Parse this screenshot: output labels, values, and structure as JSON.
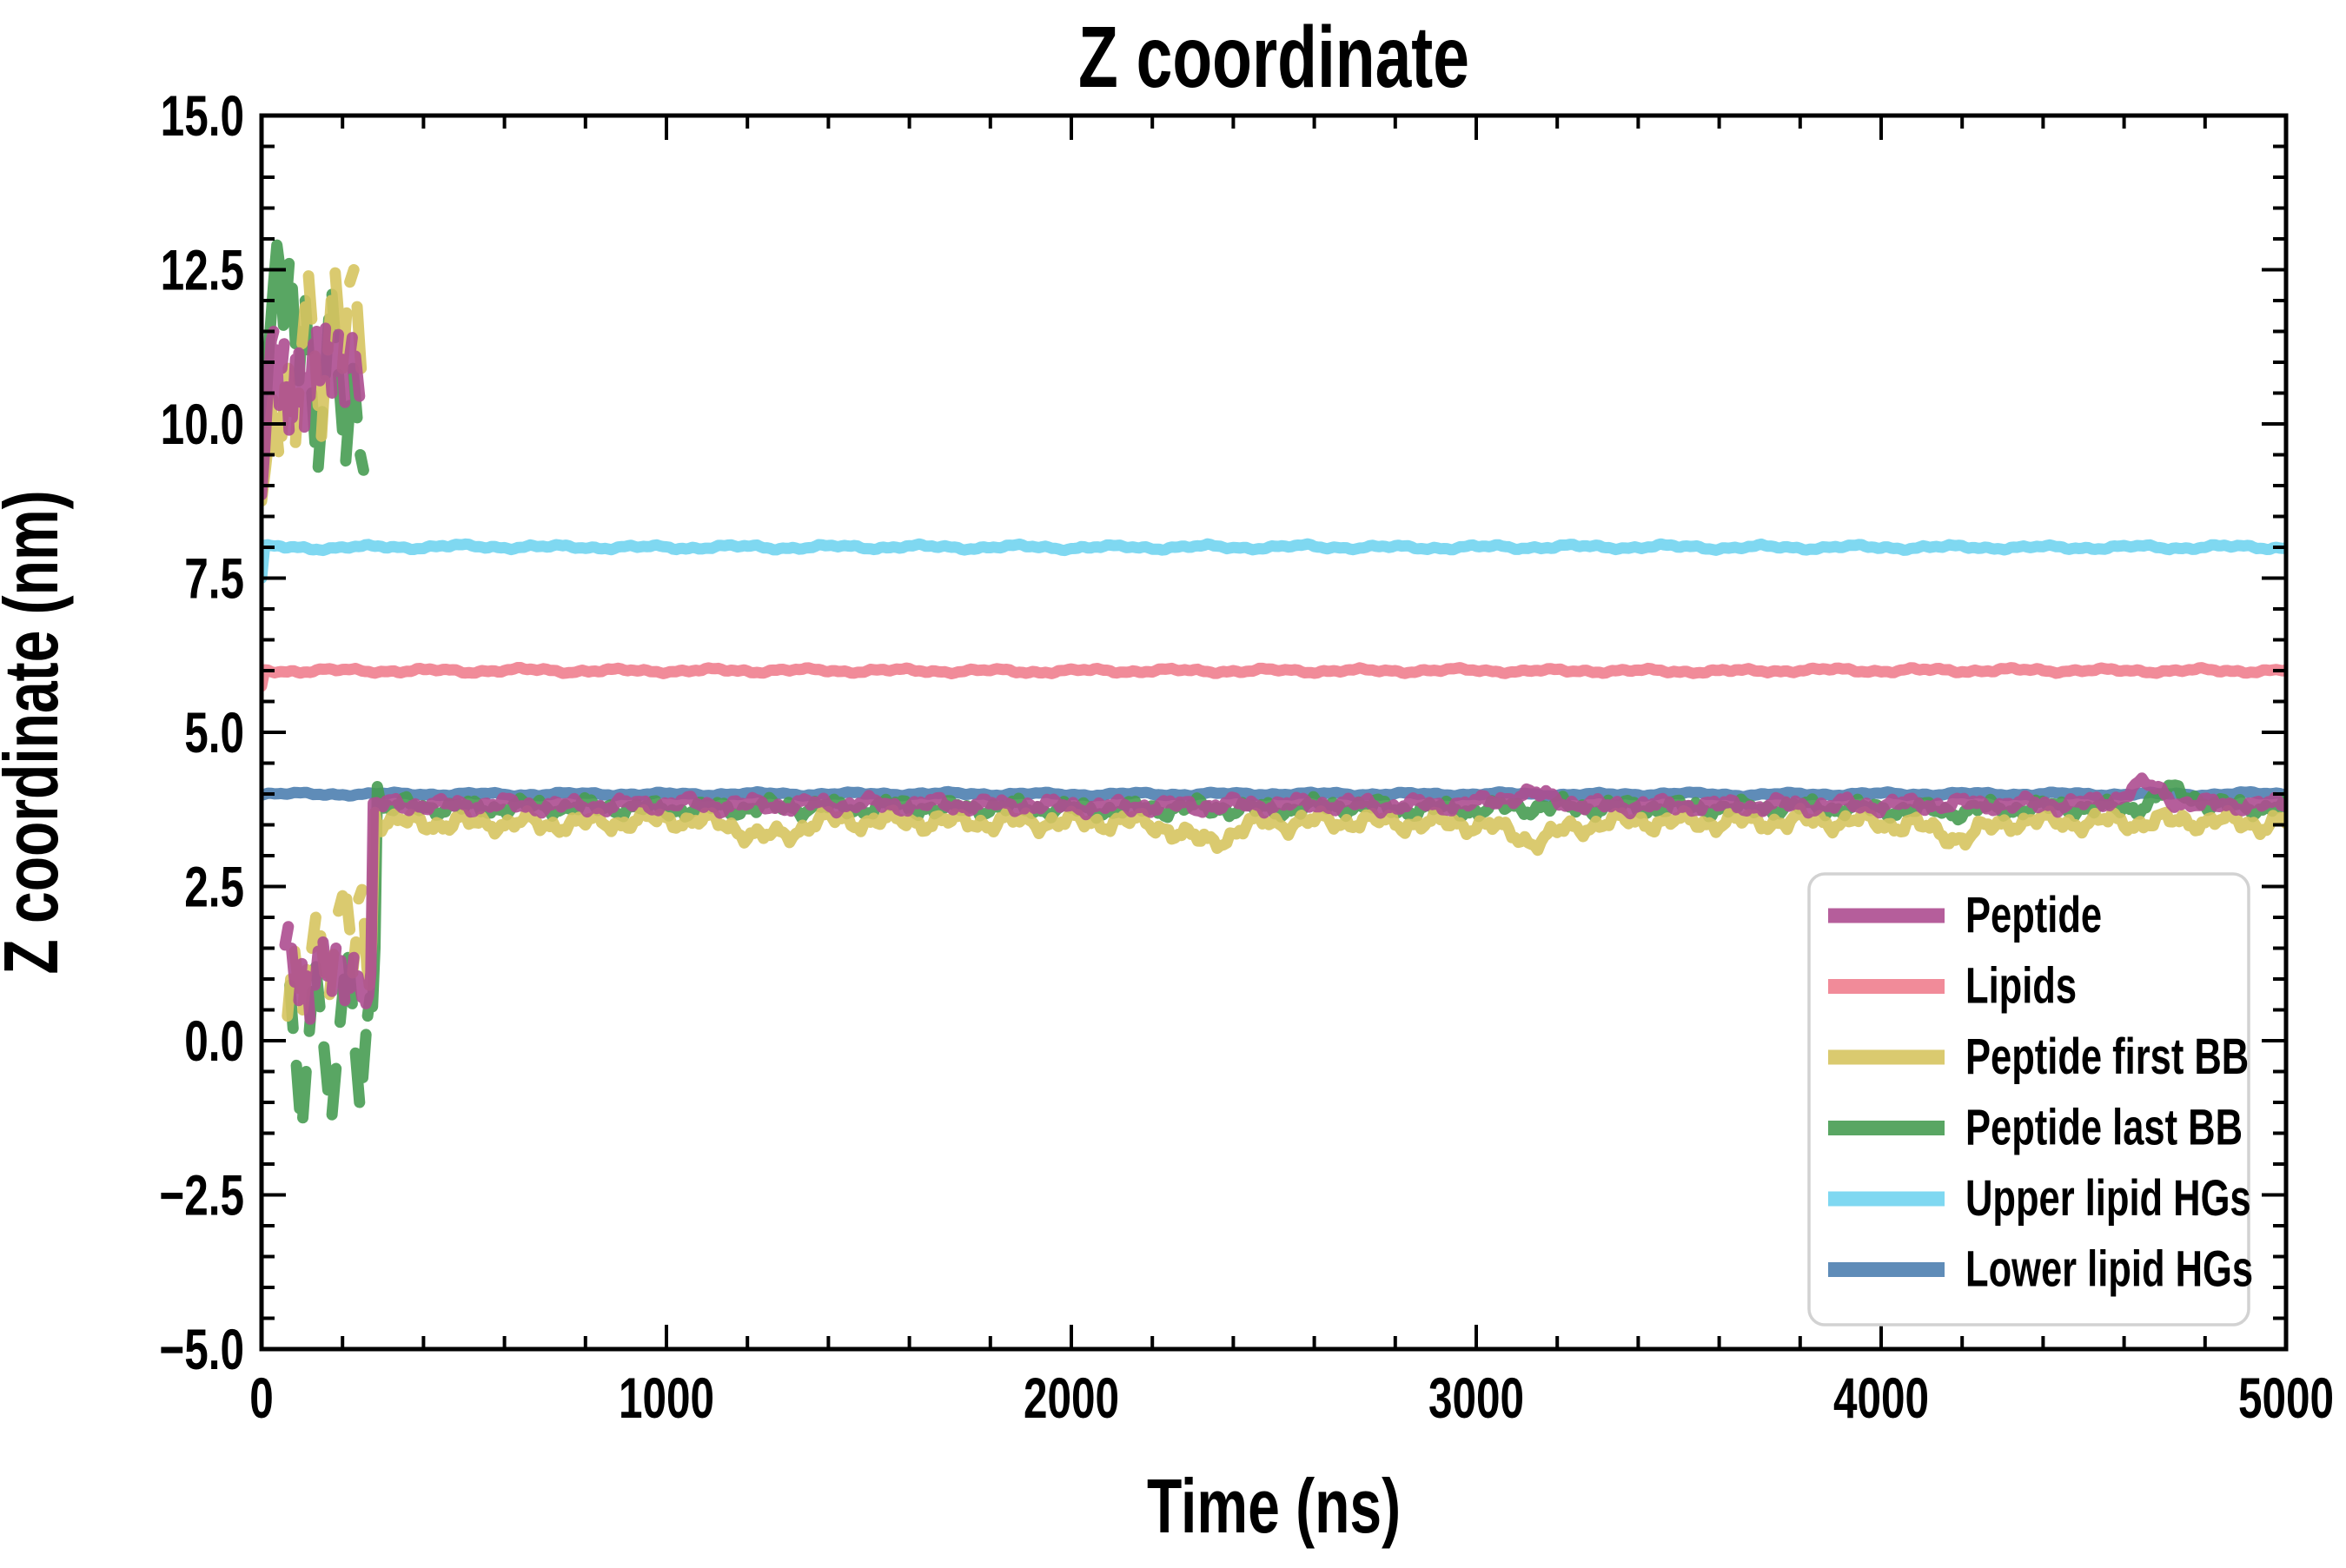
{
  "chart_data": {
    "type": "line",
    "title": "Z coordinate",
    "xlabel": "Time (ns)",
    "ylabel": "Z coordinate (nm)",
    "xlim": [
      0,
      5000
    ],
    "ylim": [
      -5.0,
      15.0
    ],
    "grid": false,
    "x_ticks": {
      "values": [
        0,
        1000,
        2000,
        3000,
        4000,
        5000
      ],
      "labels": [
        "0",
        "1000",
        "2000",
        "3000",
        "4000",
        "5000"
      ],
      "minor_step": 200
    },
    "y_ticks": {
      "values": [
        -5,
        -2.5,
        0,
        2.5,
        5,
        7.5,
        10,
        12.5,
        15
      ],
      "labels": [
        "−5.0",
        "−2.5",
        "0.0",
        "2.5",
        "5.0",
        "7.5",
        "10.0",
        "12.5",
        "15.0"
      ],
      "minor_step": 0.5
    },
    "legend": {
      "position": "lower right"
    },
    "seed": 7,
    "series": [
      {
        "name": "Peptide",
        "color": "#ad4d90",
        "opacity": 0.9,
        "linewidth": 13,
        "zorder": 6,
        "kind": "peptide",
        "entry": [
          [
            0,
            8.85
          ],
          [
            8,
            9.6
          ],
          [
            16,
            10.6
          ],
          [
            24,
            11.35
          ],
          [
            30,
            11.5
          ]
        ],
        "top_dashes": [
          [
            36,
            11.2,
            44,
            10.3
          ],
          [
            50,
            10.9,
            56,
            11.3
          ],
          [
            62,
            10.6,
            68,
            9.9
          ],
          [
            76,
            10.1,
            84,
            11.05
          ],
          [
            92,
            11.15,
            98,
            10.35
          ],
          [
            106,
            9.95,
            112,
            10.75
          ],
          [
            120,
            10.45,
            128,
            11.3
          ],
          [
            136,
            11.5,
            144,
            10.7
          ],
          [
            152,
            10.95,
            158,
            11.55
          ],
          [
            166,
            11.25,
            174,
            10.5
          ],
          [
            182,
            10.85,
            190,
            11.45
          ],
          [
            198,
            11.05,
            206,
            10.35
          ],
          [
            214,
            10.9,
            224,
            11.4
          ],
          [
            232,
            11.1,
            242,
            10.45
          ]
        ],
        "bottom_dashes": [
          [
            58,
            1.55,
            66,
            1.85
          ],
          [
            74,
            1.5,
            82,
            0.95
          ],
          [
            92,
            0.65,
            100,
            1.25
          ],
          [
            112,
            1.05,
            120,
            0.35
          ],
          [
            132,
            0.9,
            140,
            1.45
          ],
          [
            152,
            1.6,
            162,
            1.05
          ],
          [
            174,
            0.8,
            184,
            1.5
          ],
          [
            196,
            1.3,
            206,
            0.65
          ],
          [
            218,
            0.85,
            228,
            1.35
          ],
          [
            238,
            1.05,
            248,
            0.7
          ]
        ],
        "rise": [
          [
            252,
            0.75
          ],
          [
            258,
            0.6
          ],
          [
            264,
            0.72
          ],
          [
            270,
            1.1
          ],
          [
            276,
            3.85
          ]
        ],
        "stable": {
          "from": 276,
          "mean": 3.82,
          "amp": 0.14,
          "events": [
            {
              "t": 4650,
              "dv": 0.32,
              "w": 45
            },
            {
              "t": 3120,
              "dv": 0.18,
              "w": 60
            }
          ]
        }
      },
      {
        "name": "Lipids",
        "color": "#f18b99",
        "opacity": 1.0,
        "linewidth": 13,
        "zorder": 1,
        "kind": "flat",
        "entry": [
          [
            0,
            5.75
          ],
          [
            6,
            5.95
          ]
        ],
        "from": 8,
        "mean": 6.0,
        "amp": 0.05
      },
      {
        "name": "Peptide first BB",
        "color": "#d6c45f",
        "opacity": 0.9,
        "linewidth": 13,
        "zorder": 5,
        "kind": "peptide",
        "entry": [
          [
            0,
            8.75
          ],
          [
            10,
            9.3
          ],
          [
            20,
            9.9
          ],
          [
            28,
            10.4
          ]
        ],
        "top_dashes": [
          [
            34,
            10.1,
            42,
            9.55
          ],
          [
            50,
            9.8,
            58,
            10.6
          ],
          [
            66,
            10.9,
            74,
            10.2
          ],
          [
            84,
            9.7,
            92,
            10.5
          ],
          [
            100,
            11.3,
            108,
            11.9
          ],
          [
            116,
            12.4,
            124,
            11.7
          ],
          [
            132,
            11.1,
            140,
            10.3
          ],
          [
            148,
            9.8,
            156,
            10.7
          ],
          [
            164,
            11.2,
            172,
            12.0
          ],
          [
            182,
            12.45,
            192,
            11.6
          ],
          [
            200,
            10.9,
            210,
            11.8
          ],
          [
            218,
            12.3,
            228,
            12.5
          ],
          [
            236,
            11.9,
            246,
            10.9
          ]
        ],
        "bottom_dashes": [
          [
            64,
            0.4,
            72,
            1.0
          ],
          [
            82,
            1.45,
            92,
            0.85
          ],
          [
            102,
            0.5,
            112,
            1.15
          ],
          [
            124,
            1.5,
            134,
            2.0
          ],
          [
            146,
            1.7,
            156,
            1.1
          ],
          [
            168,
            0.75,
            178,
            1.4
          ],
          [
            190,
            2.1,
            200,
            2.35
          ],
          [
            210,
            2.3,
            218,
            1.8
          ],
          [
            225,
            1.1,
            233,
            1.6
          ],
          [
            240,
            2.3,
            248,
            2.45
          ]
        ],
        "rise": [
          [
            254,
            1.9
          ],
          [
            260,
            1.2
          ],
          [
            266,
            0.9
          ],
          [
            272,
            1.6
          ],
          [
            280,
            3.7
          ]
        ],
        "stable": {
          "from": 280,
          "mean": 3.55,
          "amp": 0.2,
          "events": [
            {
              "t": 1250,
              "dv": -0.28,
              "w": 70
            },
            {
              "t": 2330,
              "dv": -0.3,
              "w": 60
            },
            {
              "t": 3150,
              "dv": -0.27,
              "w": 70
            },
            {
              "t": 4180,
              "dv": -0.25,
              "w": 60
            }
          ]
        }
      },
      {
        "name": "Peptide last BB",
        "color": "#479c52",
        "opacity": 0.9,
        "linewidth": 13,
        "zorder": 4,
        "kind": "peptide",
        "entry": [
          [
            0,
            9.0
          ],
          [
            10,
            10.2
          ],
          [
            20,
            11.4
          ],
          [
            30,
            12.3
          ],
          [
            38,
            12.9
          ],
          [
            46,
            12.5
          ],
          [
            54,
            11.6
          ]
        ],
        "top_dashes": [
          [
            60,
            11.9,
            68,
            12.6
          ],
          [
            76,
            12.2,
            84,
            11.3
          ],
          [
            92,
            10.7,
            100,
            11.5
          ],
          [
            108,
            12.0,
            116,
            11.2
          ],
          [
            124,
            10.5,
            132,
            9.7
          ],
          [
            140,
            9.3,
            150,
            10.2
          ],
          [
            158,
            10.8,
            166,
            11.7
          ],
          [
            174,
            12.1,
            182,
            11.4
          ],
          [
            190,
            10.8,
            200,
            9.9
          ],
          [
            208,
            9.4,
            218,
            10.3
          ],
          [
            226,
            10.9,
            236,
            10.1
          ],
          [
            244,
            9.5,
            252,
            9.25
          ]
        ],
        "bottom_dashes": [
          [
            70,
            0.9,
            78,
            0.2
          ],
          [
            86,
            -0.4,
            94,
            -1.1
          ],
          [
            102,
            -1.25,
            110,
            -0.5
          ],
          [
            118,
            0.15,
            126,
            0.8
          ],
          [
            134,
            1.2,
            144,
            0.55
          ],
          [
            154,
            -0.1,
            164,
            -0.8
          ],
          [
            174,
            -1.2,
            184,
            -0.45
          ],
          [
            194,
            0.3,
            204,
            1.0
          ],
          [
            214,
            1.35,
            224,
            0.6
          ],
          [
            232,
            -0.2,
            242,
            -1.0
          ],
          [
            250,
            -0.6,
            258,
            0.1
          ]
        ],
        "rise": [
          [
            262,
            0.4
          ],
          [
            268,
            0.7
          ],
          [
            274,
            0.55
          ],
          [
            280,
            1.5
          ],
          [
            286,
            4.12
          ],
          [
            294,
            3.85
          ]
        ],
        "stable": {
          "from": 294,
          "mean": 3.78,
          "amp": 0.17,
          "events": [
            {
              "t": 4730,
              "dv": 0.28,
              "w": 45
            }
          ]
        }
      },
      {
        "name": "Upper lipid HGs",
        "color": "#7fd8f1",
        "opacity": 1.0,
        "linewidth": 13,
        "zorder": 2,
        "kind": "flat",
        "entry": [
          [
            0,
            7.5
          ],
          [
            6,
            7.9
          ]
        ],
        "from": 8,
        "mean": 8.0,
        "amp": 0.05
      },
      {
        "name": "Lower lipid HGs",
        "color": "#5f8cb8",
        "opacity": 1.0,
        "linewidth": 13,
        "zorder": 3,
        "kind": "flat",
        "from": 0,
        "mean": 4.0,
        "amp": 0.035
      }
    ]
  }
}
